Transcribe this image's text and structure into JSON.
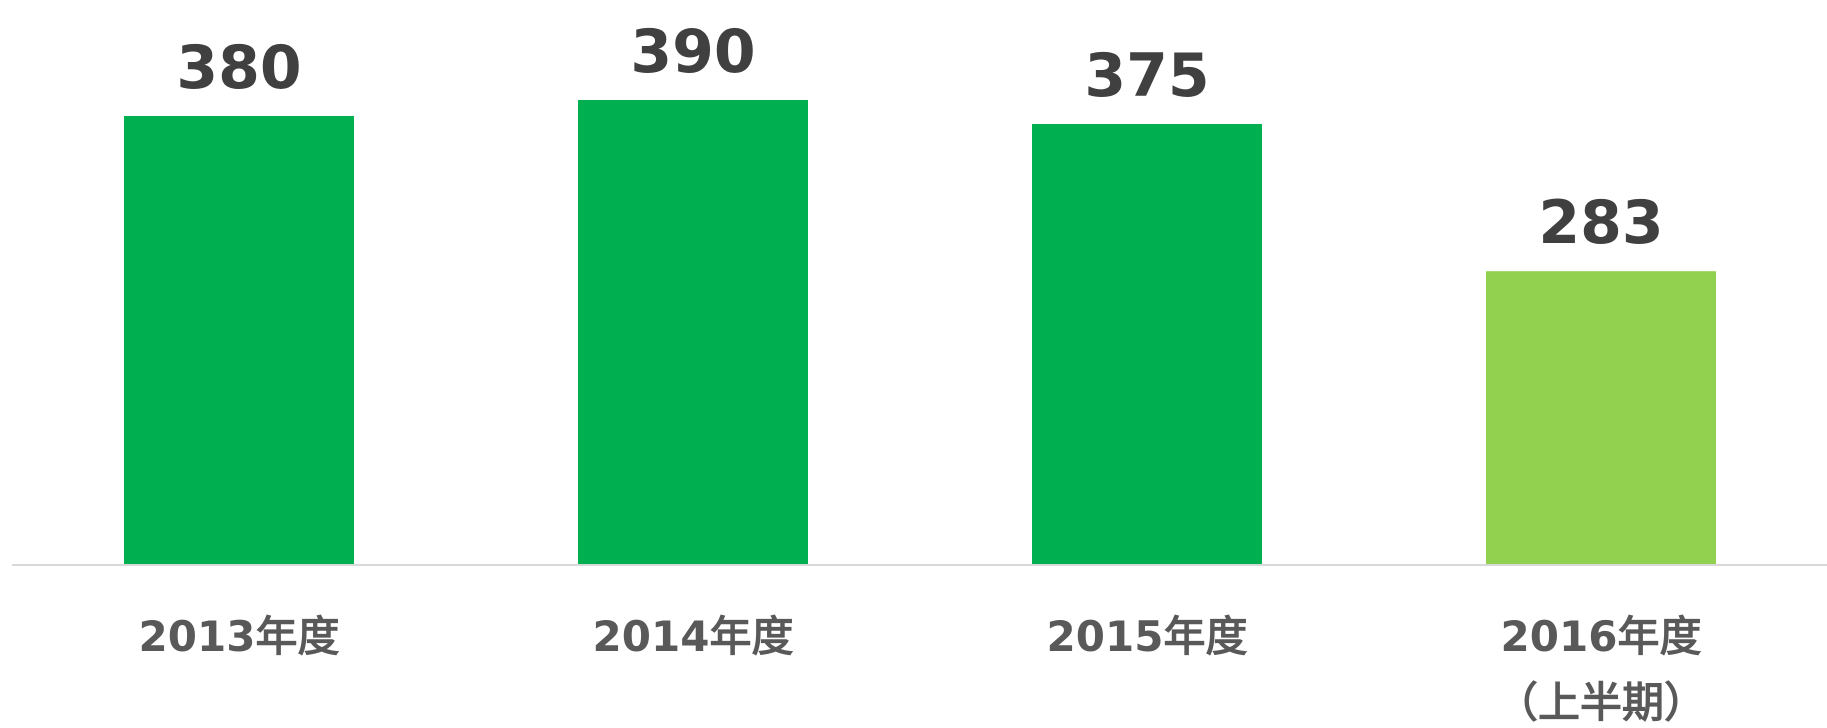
{
  "chart_data": {
    "type": "bar",
    "categories": [
      "2013年度",
      "2014年度",
      "2015年度",
      "2016年度\n（上半期）"
    ],
    "values": [
      380,
      390,
      375,
      283
    ],
    "colors": [
      "#00b050",
      "#00b050",
      "#00b050",
      "#92d050"
    ],
    "ylim": [
      100,
      450
    ]
  }
}
